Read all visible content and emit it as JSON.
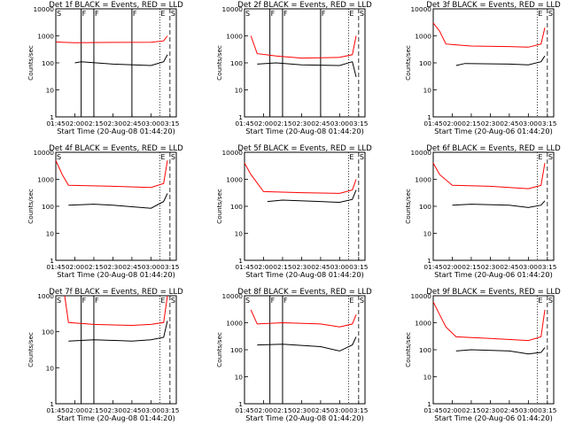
{
  "chart_data": [
    {
      "type": "line",
      "title": "Det 1f BLACK = Events, RED = LLD",
      "xlabel": "Start Time (20-Aug-08 01:44:20)",
      "ylabel": "Counts/sec",
      "ylim": [
        1,
        10000
      ],
      "yscale": "log",
      "xlim": [
        "01:45",
        "03:20"
      ],
      "x_ticks": [
        "01:45",
        "02:00",
        "02:15",
        "02:30",
        "02:45",
        "03:00",
        "03:15"
      ],
      "y_ticks": [
        "1",
        "10",
        "100",
        "1000",
        "10000"
      ],
      "markers": [
        {
          "label": "S",
          "time": "01:45"
        },
        {
          "label": "F",
          "time": "02:05"
        },
        {
          "label": "F",
          "time": "02:15"
        },
        {
          "label": "F",
          "time": "02:45"
        },
        {
          "label": "E",
          "time": "03:07"
        },
        {
          "label": "S",
          "time": "03:15"
        }
      ],
      "series": [
        {
          "color": "#ff0000",
          "points": [
            [
              "01:45",
              600
            ],
            [
              "01:50",
              580
            ],
            [
              "02:00",
              560
            ],
            [
              "02:30",
              570
            ],
            [
              "03:00",
              580
            ],
            [
              "03:10",
              650
            ],
            [
              "03:13",
              1000
            ]
          ]
        },
        {
          "color": "#000000",
          "points": [
            [
              "02:00",
              100
            ],
            [
              "02:05",
              110
            ],
            [
              "02:30",
              90
            ],
            [
              "03:00",
              80
            ],
            [
              "03:10",
              110
            ],
            [
              "03:13",
              200
            ]
          ]
        }
      ]
    },
    {
      "type": "line",
      "title": "Det 2f BLACK = Events, RED = LLD",
      "xlabel": "Start Time (20-Aug-08 01:44:20)",
      "ylabel": "Counts/sec",
      "ylim": [
        1,
        10000
      ],
      "yscale": "log",
      "xlim": [
        "01:45",
        "03:20"
      ],
      "x_ticks": [
        "01:45",
        "02:00",
        "02:15",
        "02:30",
        "02:45",
        "03:00",
        "03:15"
      ],
      "y_ticks": [
        "1",
        "10",
        "100",
        "1000",
        "10000"
      ],
      "markers": [
        {
          "label": "S",
          "time": "01:45"
        },
        {
          "label": "F",
          "time": "02:05"
        },
        {
          "label": "F",
          "time": "02:15"
        },
        {
          "label": "F",
          "time": "02:45"
        },
        {
          "label": "E",
          "time": "03:07"
        },
        {
          "label": "S",
          "time": "03:15"
        }
      ],
      "series": [
        {
          "color": "#ff0000",
          "points": [
            [
              "01:50",
              1000
            ],
            [
              "01:55",
              220
            ],
            [
              "02:10",
              180
            ],
            [
              "02:30",
              150
            ],
            [
              "03:00",
              160
            ],
            [
              "03:10",
              200
            ],
            [
              "03:13",
              1000
            ]
          ]
        },
        {
          "color": "#000000",
          "points": [
            [
              "01:55",
              90
            ],
            [
              "02:10",
              100
            ],
            [
              "02:30",
              85
            ],
            [
              "03:00",
              80
            ],
            [
              "03:10",
              110
            ],
            [
              "03:13",
              30
            ]
          ]
        }
      ]
    },
    {
      "type": "line",
      "title": "Det 3f BLACK = Events, RED = LLD",
      "xlabel": "Start Time (20-Aug-06 01:44:20)",
      "ylabel": "Counts/sec",
      "ylim": [
        1,
        10000
      ],
      "yscale": "log",
      "xlim": [
        "01:45",
        "03:20"
      ],
      "x_ticks": [
        "01:45",
        "02:00",
        "02:15",
        "02:30",
        "02:45",
        "03:00",
        "03:15"
      ],
      "y_ticks": [
        "1",
        "10",
        "100",
        "1000",
        "10000"
      ],
      "markers": [
        {
          "label": "E",
          "time": "03:07"
        },
        {
          "label": "S",
          "time": "03:15"
        }
      ],
      "series": [
        {
          "color": "#ff0000",
          "points": [
            [
              "01:45",
              3000
            ],
            [
              "01:50",
              1500
            ],
            [
              "01:55",
              500
            ],
            [
              "02:15",
              420
            ],
            [
              "02:45",
              400
            ],
            [
              "03:00",
              380
            ],
            [
              "03:10",
              500
            ],
            [
              "03:13",
              2000
            ]
          ]
        },
        {
          "color": "#000000",
          "points": [
            [
              "02:03",
              80
            ],
            [
              "02:10",
              95
            ],
            [
              "02:45",
              90
            ],
            [
              "03:00",
              85
            ],
            [
              "03:10",
              110
            ],
            [
              "03:13",
              180
            ]
          ]
        }
      ]
    },
    {
      "type": "line",
      "title": "Det 4f BLACK = Events, RED = LLD",
      "xlabel": "Start Time (20-Aug-08 01:44:20)",
      "ylabel": "Counts/sec",
      "ylim": [
        1,
        10000
      ],
      "yscale": "log",
      "xlim": [
        "01:45",
        "03:20"
      ],
      "x_ticks": [
        "01:45",
        "02:00",
        "02:15",
        "02:30",
        "02:45",
        "03:00",
        "03:15"
      ],
      "y_ticks": [
        "1",
        "10",
        "100",
        "1000",
        "10000"
      ],
      "markers": [
        {
          "label": "S",
          "time": "01:45"
        },
        {
          "label": "E",
          "time": "03:07"
        },
        {
          "label": "S",
          "time": "03:15"
        }
      ],
      "series": [
        {
          "color": "#ff0000",
          "points": [
            [
              "01:45",
              5000
            ],
            [
              "01:50",
              1500
            ],
            [
              "01:55",
              600
            ],
            [
              "02:30",
              550
            ],
            [
              "03:00",
              500
            ],
            [
              "03:10",
              700
            ],
            [
              "03:13",
              5000
            ]
          ]
        },
        {
          "color": "#000000",
          "points": [
            [
              "01:55",
              110
            ],
            [
              "02:15",
              120
            ],
            [
              "02:30",
              110
            ],
            [
              "03:00",
              85
            ],
            [
              "03:10",
              150
            ],
            [
              "03:13",
              300
            ]
          ]
        }
      ]
    },
    {
      "type": "line",
      "title": "Det 5f BLACK = Events, RED = LLD",
      "xlabel": "Start Time (20-Aug-08 01:44:20)",
      "ylabel": "Counts/sec",
      "ylim": [
        1,
        10000
      ],
      "yscale": "log",
      "xlim": [
        "01:45",
        "03:20"
      ],
      "x_ticks": [
        "01:45",
        "02:00",
        "02:15",
        "02:30",
        "02:45",
        "03:00",
        "03:15"
      ],
      "y_ticks": [
        "1",
        "10",
        "100",
        "1000",
        "10000"
      ],
      "markers": [
        {
          "label": "E",
          "time": "03:07"
        },
        {
          "label": "S",
          "time": "03:15"
        }
      ],
      "series": [
        {
          "color": "#ff0000",
          "points": [
            [
              "01:45",
              4000
            ],
            [
              "01:50",
              1500
            ],
            [
              "02:00",
              350
            ],
            [
              "02:30",
              320
            ],
            [
              "03:00",
              300
            ],
            [
              "03:10",
              400
            ],
            [
              "03:13",
              1000
            ]
          ]
        },
        {
          "color": "#000000",
          "points": [
            [
              "02:03",
              150
            ],
            [
              "02:15",
              170
            ],
            [
              "02:45",
              150
            ],
            [
              "03:00",
              140
            ],
            [
              "03:10",
              180
            ],
            [
              "03:13",
              400
            ]
          ]
        }
      ]
    },
    {
      "type": "line",
      "title": "Det 6f BLACK = Events, RED = LLD",
      "xlabel": "Start Time (20-Aug-06 01:44:20)",
      "ylabel": "Counts/sec",
      "ylim": [
        1,
        10000
      ],
      "yscale": "log",
      "xlim": [
        "01:45",
        "03:20"
      ],
      "x_ticks": [
        "01:45",
        "02:00",
        "02:15",
        "02:30",
        "02:45",
        "03:00",
        "03:15"
      ],
      "y_ticks": [
        "1",
        "10",
        "100",
        "1000",
        "10000"
      ],
      "markers": [
        {
          "label": "E",
          "time": "03:07"
        },
        {
          "label": "S",
          "time": "03:15"
        }
      ],
      "series": [
        {
          "color": "#ff0000",
          "points": [
            [
              "01:45",
              4000
            ],
            [
              "01:50",
              1500
            ],
            [
              "02:00",
              600
            ],
            [
              "02:30",
              550
            ],
            [
              "03:00",
              450
            ],
            [
              "03:10",
              600
            ],
            [
              "03:13",
              4000
            ]
          ]
        },
        {
          "color": "#000000",
          "points": [
            [
              "02:00",
              110
            ],
            [
              "02:15",
              120
            ],
            [
              "02:45",
              110
            ],
            [
              "03:00",
              90
            ],
            [
              "03:10",
              110
            ],
            [
              "03:13",
              160
            ]
          ]
        }
      ]
    },
    {
      "type": "line",
      "title": "Det 7f BLACK = Events, RED = LLD",
      "xlabel": "Start Time (20-Aug-08 01:44:20)",
      "ylabel": "Counts/sec",
      "ylim": [
        1,
        1000
      ],
      "yscale": "log",
      "xlim": [
        "01:45",
        "03:20"
      ],
      "x_ticks": [
        "01:45",
        "02:00",
        "02:15",
        "02:30",
        "02:45",
        "03:00",
        "03:15"
      ],
      "y_ticks": [
        "1",
        "10",
        "100",
        "1000"
      ],
      "markers": [
        {
          "label": "S",
          "time": "01:45"
        },
        {
          "label": "F",
          "time": "02:05"
        },
        {
          "label": "F",
          "time": "02:15"
        },
        {
          "label": "E",
          "time": "03:07"
        },
        {
          "label": "S",
          "time": "03:15"
        }
      ],
      "series": [
        {
          "color": "#ff0000",
          "points": [
            [
              "01:52",
              1000
            ],
            [
              "01:55",
              180
            ],
            [
              "02:15",
              160
            ],
            [
              "02:45",
              150
            ],
            [
              "03:00",
              160
            ],
            [
              "03:10",
              180
            ],
            [
              "03:13",
              1000
            ]
          ]
        },
        {
          "color": "#000000",
          "points": [
            [
              "01:55",
              55
            ],
            [
              "02:15",
              60
            ],
            [
              "02:45",
              55
            ],
            [
              "03:00",
              60
            ],
            [
              "03:10",
              70
            ],
            [
              "03:13",
              200
            ]
          ]
        }
      ]
    },
    {
      "type": "line",
      "title": "Det 8f BLACK = Events, RED = LLD",
      "xlabel": "Start Time (20-Aug-08 01:44:20)",
      "ylabel": "Counts/sec",
      "ylim": [
        1,
        10000
      ],
      "yscale": "log",
      "xlim": [
        "01:45",
        "03:20"
      ],
      "x_ticks": [
        "01:45",
        "02:00",
        "02:15",
        "02:30",
        "02:45",
        "03:00",
        "03:15"
      ],
      "y_ticks": [
        "1",
        "10",
        "100",
        "1000",
        "10000"
      ],
      "markers": [
        {
          "label": "S",
          "time": "01:45"
        },
        {
          "label": "F",
          "time": "02:05"
        },
        {
          "label": "F",
          "time": "02:15"
        },
        {
          "label": "E",
          "time": "03:07"
        },
        {
          "label": "S",
          "time": "03:15"
        }
      ],
      "series": [
        {
          "color": "#ff0000",
          "points": [
            [
              "01:50",
              3000
            ],
            [
              "01:55",
              900
            ],
            [
              "02:15",
              1000
            ],
            [
              "02:45",
              900
            ],
            [
              "03:00",
              700
            ],
            [
              "03:10",
              900
            ],
            [
              "03:13",
              2000
            ]
          ]
        },
        {
          "color": "#000000",
          "points": [
            [
              "01:55",
              150
            ],
            [
              "02:15",
              160
            ],
            [
              "02:45",
              130
            ],
            [
              "03:00",
              90
            ],
            [
              "03:10",
              150
            ],
            [
              "03:13",
              300
            ]
          ]
        }
      ]
    },
    {
      "type": "line",
      "title": "Det 9f BLACK = Events, RED = LLD",
      "xlabel": "Start Time (20-Aug-06 01:44:20)",
      "ylabel": "Counts/sec",
      "ylim": [
        1,
        10000
      ],
      "yscale": "log",
      "xlim": [
        "01:45",
        "03:20"
      ],
      "x_ticks": [
        "01:45",
        "02:00",
        "02:15",
        "02:30",
        "02:45",
        "03:00",
        "03:15"
      ],
      "y_ticks": [
        "1",
        "10",
        "100",
        "1000",
        "10000"
      ],
      "markers": [
        {
          "label": "E",
          "time": "03:07"
        },
        {
          "label": "S",
          "time": "03:15"
        }
      ],
      "series": [
        {
          "color": "#ff0000",
          "points": [
            [
              "01:45",
              6000
            ],
            [
              "01:50",
              2000
            ],
            [
              "01:55",
              700
            ],
            [
              "02:03",
              300
            ],
            [
              "02:30",
              260
            ],
            [
              "03:00",
              220
            ],
            [
              "03:10",
              300
            ],
            [
              "03:13",
              3000
            ]
          ]
        },
        {
          "color": "#000000",
          "points": [
            [
              "02:03",
              90
            ],
            [
              "02:15",
              100
            ],
            [
              "02:45",
              90
            ],
            [
              "03:00",
              70
            ],
            [
              "03:10",
              80
            ],
            [
              "03:13",
              120
            ]
          ]
        }
      ]
    }
  ]
}
